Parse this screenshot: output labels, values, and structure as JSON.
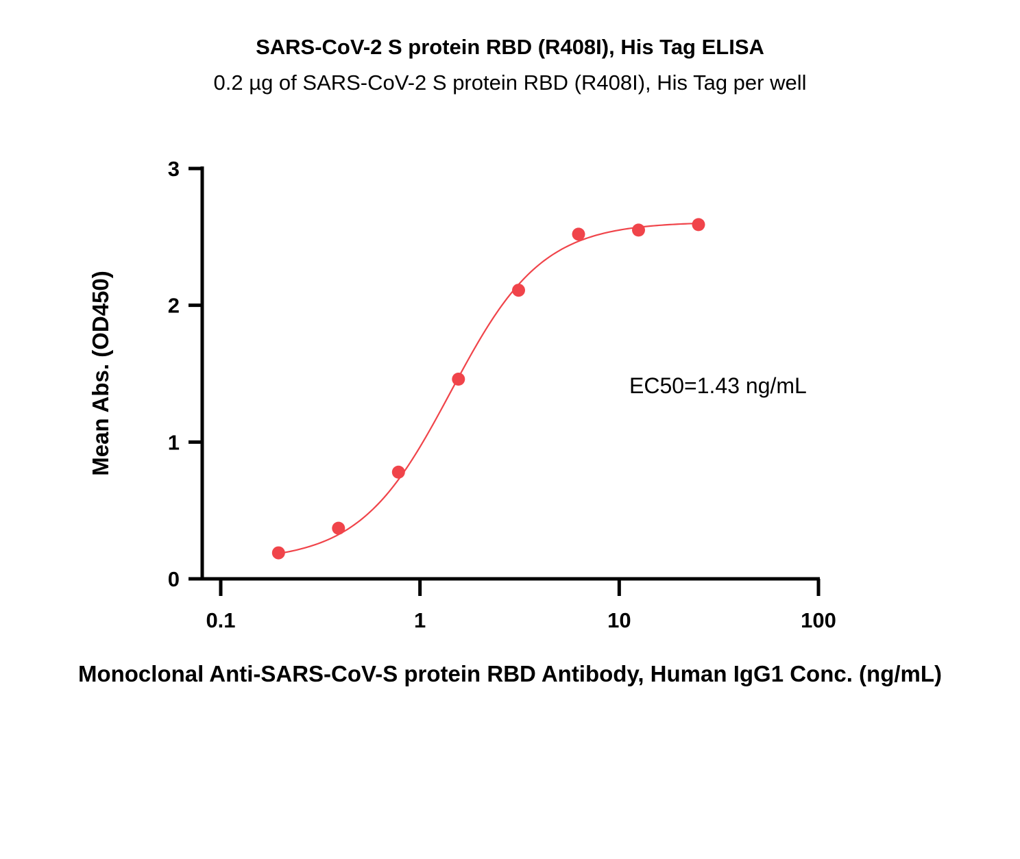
{
  "chart_data": {
    "type": "scatter",
    "title": "SARS-CoV-2 S protein RBD (R408I), His Tag ELISA",
    "subtitle": "0.2 µg of SARS-CoV-2 S protein RBD (R408I), His Tag per well",
    "xlabel": "Monoclonal Anti-SARS-CoV-S protein RBD Antibody, Human IgG1 Conc. (ng/mL)",
    "ylabel": "Mean Abs. (OD450)",
    "xscale": "log",
    "xlim": [
      0.1,
      100
    ],
    "ylim": [
      0,
      3
    ],
    "xticks": [
      "0.1",
      "1",
      "10",
      "100"
    ],
    "yticks": [
      "0",
      "1",
      "2",
      "3"
    ],
    "grid": false,
    "legend": "none",
    "annotation": "EC50=1.43 ng/mL",
    "series": [
      {
        "color": "#f0444a",
        "x": [
          0.195,
          0.39,
          0.78,
          1.56,
          3.125,
          6.25,
          12.5,
          25
        ],
        "y": [
          0.19,
          0.37,
          0.78,
          1.46,
          2.11,
          2.52,
          2.55,
          2.59
        ],
        "fit": "4PL",
        "fit_params": {
          "bottom": 0.13,
          "top": 2.61,
          "ec50": 1.43,
          "hill": 1.9
        }
      }
    ]
  }
}
